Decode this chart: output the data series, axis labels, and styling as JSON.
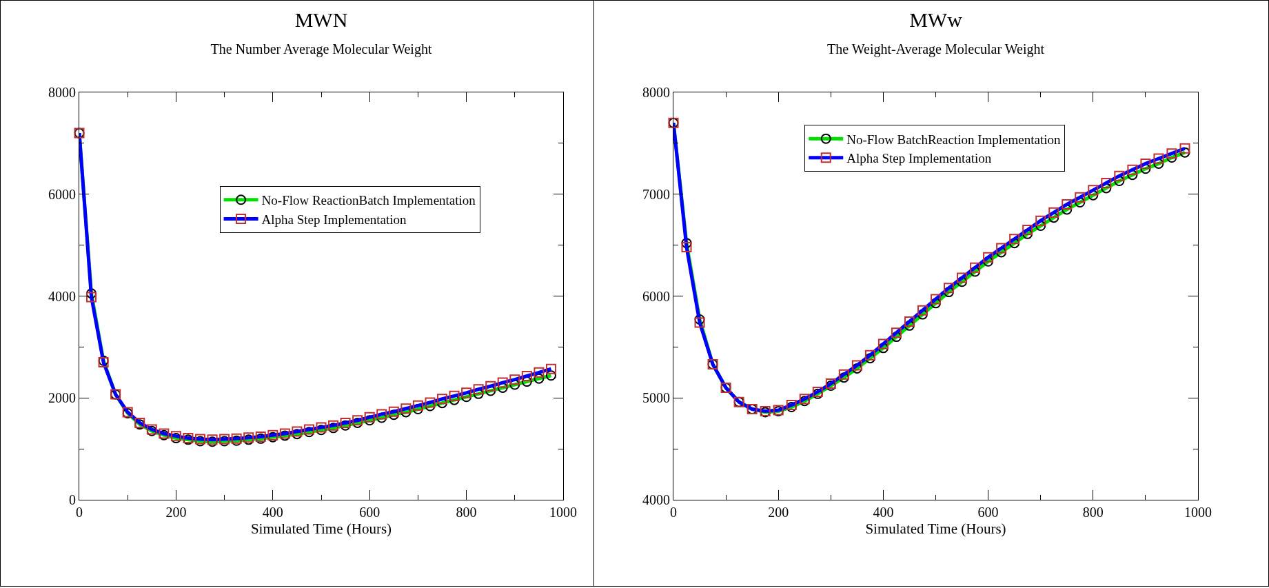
{
  "chart_data": [
    {
      "type": "line",
      "title": "MWN",
      "subtitle": "The Number Average Molecular Weight",
      "xlabel": "Simulated Time (Hours)",
      "x": [
        0,
        25,
        50,
        75,
        100,
        125,
        150,
        175,
        200,
        225,
        250,
        275,
        300,
        325,
        350,
        375,
        400,
        425,
        450,
        475,
        500,
        525,
        550,
        575,
        600,
        625,
        650,
        675,
        700,
        725,
        750,
        775,
        800,
        825,
        850,
        875,
        900,
        925,
        950,
        975
      ],
      "series": [
        {
          "name": "No-Flow ReactionBatch Implementation",
          "color": "#00e000",
          "marker": "circle",
          "values": [
            7200,
            4050,
            2730,
            2070,
            1700,
            1480,
            1350,
            1270,
            1210,
            1180,
            1150,
            1140,
            1150,
            1160,
            1180,
            1200,
            1230,
            1260,
            1290,
            1330,
            1370,
            1410,
            1460,
            1510,
            1560,
            1610,
            1670,
            1720,
            1780,
            1840,
            1900,
            1960,
            2020,
            2080,
            2140,
            2200,
            2260,
            2320,
            2380,
            2440
          ]
        },
        {
          "name": "Alpha Step Implementation",
          "color": "#0000ff",
          "marker": "square",
          "values": [
            7200,
            3980,
            2700,
            2070,
            1720,
            1510,
            1380,
            1300,
            1250,
            1210,
            1190,
            1180,
            1190,
            1200,
            1220,
            1240,
            1270,
            1300,
            1340,
            1380,
            1420,
            1460,
            1510,
            1560,
            1620,
            1680,
            1730,
            1790,
            1850,
            1910,
            1980,
            2040,
            2100,
            2170,
            2230,
            2300,
            2360,
            2430,
            2500,
            2570
          ]
        }
      ],
      "xlim": [
        0,
        1000
      ],
      "xticks": [
        0,
        {
          "value": 100,
          "label": null
        },
        200,
        {
          "value": 300,
          "label": null
        },
        400,
        {
          "value": 500,
          "label": null
        },
        600,
        {
          "value": 700,
          "label": null
        },
        800,
        {
          "value": 900,
          "label": null
        },
        1000
      ],
      "ylim": [
        0,
        8000
      ],
      "yticks": [
        0,
        {
          "value": 1000,
          "label": null
        },
        2000,
        {
          "value": 3000,
          "label": null
        },
        4000,
        {
          "value": 5000,
          "label": null
        },
        6000,
        {
          "value": 7000,
          "label": null
        },
        8000
      ],
      "grid": false,
      "legend": "top",
      "line_style": "solid"
    },
    {
      "type": "line",
      "title": "MWw",
      "subtitle": "The Weight-Average Molecular Weight",
      "xlabel": "Simulated Time (Hours)",
      "x": [
        0,
        25,
        50,
        75,
        100,
        125,
        150,
        175,
        200,
        225,
        250,
        275,
        300,
        325,
        350,
        375,
        400,
        425,
        450,
        475,
        500,
        525,
        550,
        575,
        600,
        625,
        650,
        675,
        700,
        725,
        750,
        775,
        800,
        825,
        850,
        875,
        900,
        925,
        950,
        975
      ],
      "series": [
        {
          "name": "No-Flow BatchReaction Implementation",
          "color": "#00e000",
          "marker": "circle",
          "values": [
            7700,
            6520,
            5770,
            5330,
            5100,
            4960,
            4890,
            4860,
            4870,
            4910,
            4970,
            5040,
            5120,
            5200,
            5290,
            5390,
            5490,
            5600,
            5710,
            5820,
            5930,
            6040,
            6140,
            6240,
            6340,
            6430,
            6520,
            6610,
            6690,
            6770,
            6850,
            6920,
            6990,
            7060,
            7130,
            7190,
            7250,
            7300,
            7360,
            7410
          ]
        },
        {
          "name": "Alpha Step Implementation",
          "color": "#0000ff",
          "marker": "square",
          "values": [
            7700,
            6480,
            5740,
            5330,
            5100,
            4960,
            4890,
            4870,
            4880,
            4930,
            4990,
            5060,
            5140,
            5230,
            5320,
            5420,
            5530,
            5640,
            5750,
            5860,
            5970,
            6080,
            6180,
            6280,
            6380,
            6470,
            6560,
            6650,
            6740,
            6820,
            6900,
            6970,
            7040,
            7110,
            7180,
            7240,
            7300,
            7350,
            7400,
            7450
          ]
        }
      ],
      "xlim": [
        0,
        1000
      ],
      "xticks": [
        0,
        {
          "value": 100,
          "label": null
        },
        200,
        {
          "value": 300,
          "label": null
        },
        400,
        {
          "value": 500,
          "label": null
        },
        600,
        {
          "value": 700,
          "label": null
        },
        800,
        {
          "value": 900,
          "label": null
        },
        1000
      ],
      "ylim": [
        4000,
        8000
      ],
      "yticks": [
        4000,
        {
          "value": 4500,
          "label": null
        },
        5000,
        {
          "value": 5500,
          "label": null
        },
        6000,
        {
          "value": 6500,
          "label": null
        },
        7000,
        {
          "value": 7500,
          "label": null
        },
        8000
      ],
      "grid": false,
      "legend": "top left",
      "line_style": "solid"
    }
  ]
}
